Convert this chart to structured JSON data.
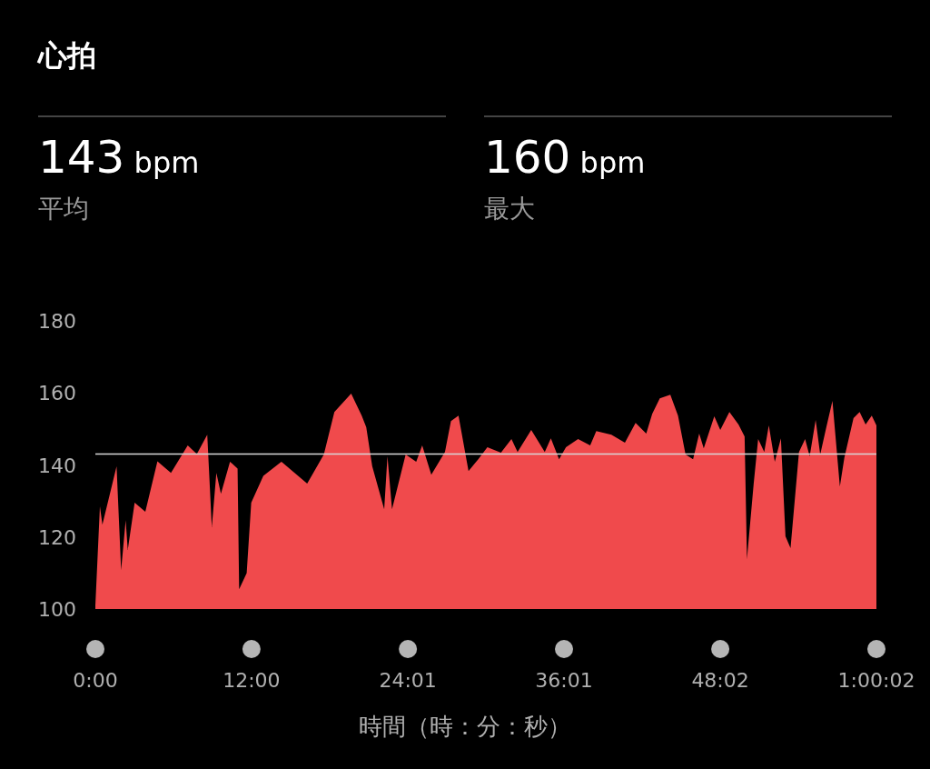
{
  "chart_data": {
    "type": "area",
    "title": "心拍",
    "xlabel": "時間（時：分：秒）",
    "annotations": [
      "143 bpm",
      "平均",
      "160 bpm",
      "最大"
    ],
    "x": [
      0,
      0.35,
      0.54,
      1.05,
      1.63,
      1.98,
      2.33,
      2.49,
      3.02,
      3.84,
      4.77,
      5.81,
      7.1,
      7.8,
      8.6,
      8.95,
      9.3,
      9.65,
      10.35,
      10.93,
      11.05,
      11.63,
      11.98,
      12.91,
      14.3,
      16.28,
      17.56,
      18.37,
      19.66,
      20.47,
      20.82,
      21.28,
      22.2,
      22.45,
      22.8,
      23.85,
      24.66,
      25.12,
      25.82,
      26.87,
      27.33,
      27.91,
      28.68,
      29.43,
      30.13,
      31.17,
      31.98,
      32.45,
      33.5,
      34.54,
      35.01,
      35.64,
      36.17,
      37.1,
      38.03,
      38.5,
      39.66,
      40.7,
      41.52,
      42.34,
      42.8,
      43.38,
      44.19,
      44.78,
      45.36,
      45.94,
      46.41,
      46.76,
      47.57,
      48.03,
      48.73,
      49.43,
      49.9,
      50.08,
      50.59,
      50.94,
      51.41,
      51.76,
      52.22,
      52.69,
      53.04,
      53.43,
      54.08,
      54.55,
      54.9,
      55.36,
      55.71,
      56.18,
      56.65,
      57.22,
      57.57,
      58.27,
      58.74,
      59.2,
      59.67,
      60.03
    ],
    "values": [
      101,
      128.5,
      123.4,
      131,
      139.6,
      110.8,
      124.7,
      116.4,
      129.5,
      127,
      141,
      137.8,
      145.4,
      143,
      148.4,
      122.7,
      137.8,
      132,
      140.9,
      139,
      105.5,
      110,
      129.5,
      137,
      140.9,
      134.8,
      142.9,
      154.7,
      159.8,
      153.7,
      150.5,
      139.6,
      127.7,
      142.4,
      127.7,
      142.9,
      140.9,
      145.4,
      137.3,
      143.6,
      152.2,
      153.7,
      138.3,
      141.6,
      144.9,
      143.4,
      147.2,
      143.6,
      149.7,
      143.6,
      147.4,
      141.6,
      144.9,
      147.2,
      145.4,
      149.4,
      148.4,
      146.2,
      151.7,
      148.7,
      154.2,
      158.5,
      159.5,
      153.7,
      142.9,
      141.6,
      148.7,
      144.6,
      153.5,
      149.7,
      154.7,
      151.2,
      147.9,
      113.8,
      134.5,
      147.2,
      143.6,
      151,
      140.9,
      147.4,
      120.2,
      116.9,
      143.6,
      147.2,
      142.4,
      152.5,
      142.9,
      150.5,
      157.8,
      134,
      142.1,
      153,
      154.7,
      151.2,
      153.7,
      151
    ],
    "color": "#f04a4c",
    "xlim": [
      0,
      60.03
    ],
    "xticks": [
      {
        "value": 0,
        "label": "0:00"
      },
      {
        "value": 12,
        "label": "12:00"
      },
      {
        "value": 24.02,
        "label": "24:01"
      },
      {
        "value": 36.02,
        "label": "36:01"
      },
      {
        "value": 48.03,
        "label": "48:02"
      },
      {
        "value": 60.03,
        "label": "1:00:02"
      }
    ],
    "ylim": [
      100,
      180
    ],
    "yticks": [
      100,
      120,
      140,
      160,
      180
    ],
    "ref_lines": [
      {
        "axis": "y",
        "value": 143,
        "label": null,
        "color": "#d8d8d8"
      }
    ],
    "grid": false,
    "legend": false
  }
}
